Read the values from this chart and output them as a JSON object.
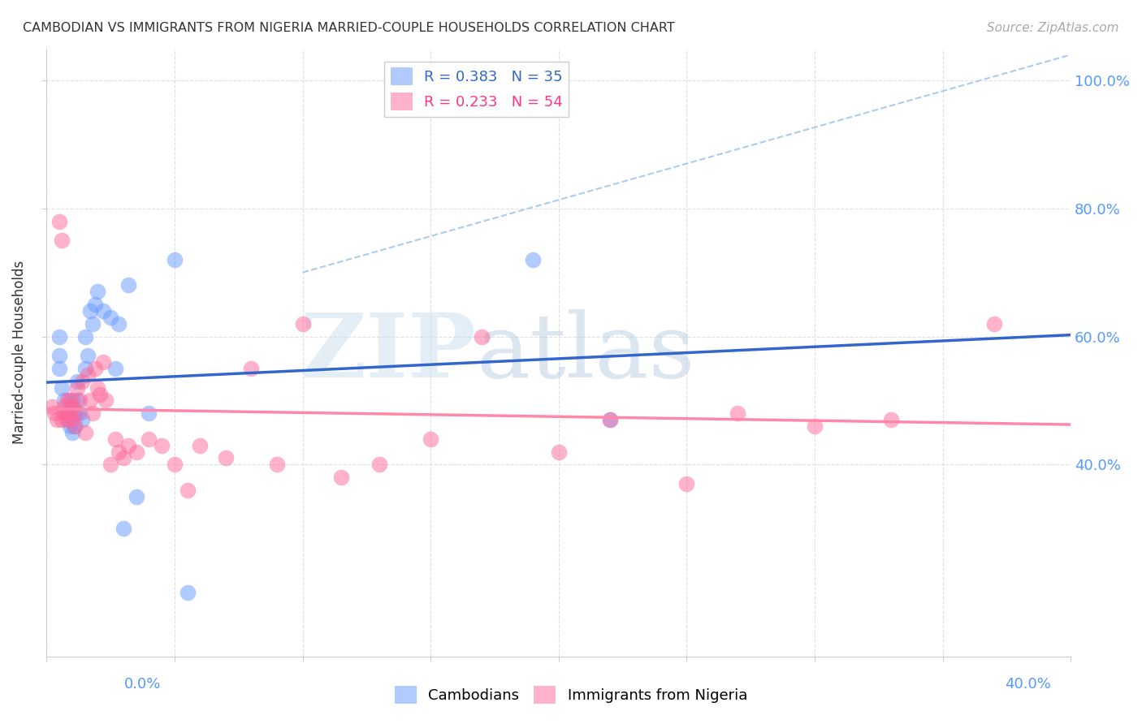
{
  "title": "CAMBODIAN VS IMMIGRANTS FROM NIGERIA MARRIED-COUPLE HOUSEHOLDS CORRELATION CHART",
  "source": "Source: ZipAtlas.com",
  "ylabel": "Married-couple Households",
  "xlim": [
    0.0,
    0.4
  ],
  "ylim": [
    0.1,
    1.05
  ],
  "legend1_label": "R = 0.383   N = 35",
  "legend2_label": "R = 0.233   N = 54",
  "legend1_color": "#6699ff",
  "legend2_color": "#ff6699",
  "watermark_zip": "ZIP",
  "watermark_atlas": "atlas",
  "cambodian_x": [
    0.005,
    0.005,
    0.005,
    0.006,
    0.007,
    0.008,
    0.008,
    0.009,
    0.01,
    0.01,
    0.011,
    0.011,
    0.012,
    0.012,
    0.013,
    0.014,
    0.015,
    0.015,
    0.016,
    0.017,
    0.018,
    0.019,
    0.02,
    0.022,
    0.025,
    0.027,
    0.028,
    0.03,
    0.032,
    0.035,
    0.04,
    0.05,
    0.055,
    0.19,
    0.22
  ],
  "cambodian_y": [
    0.6,
    0.57,
    0.55,
    0.52,
    0.5,
    0.48,
    0.47,
    0.46,
    0.45,
    0.5,
    0.48,
    0.46,
    0.5,
    0.53,
    0.48,
    0.47,
    0.55,
    0.6,
    0.57,
    0.64,
    0.62,
    0.65,
    0.67,
    0.64,
    0.63,
    0.55,
    0.62,
    0.3,
    0.68,
    0.35,
    0.48,
    0.72,
    0.2,
    0.72,
    0.47
  ],
  "nigeria_x": [
    0.002,
    0.003,
    0.004,
    0.005,
    0.006,
    0.006,
    0.007,
    0.007,
    0.008,
    0.008,
    0.009,
    0.009,
    0.01,
    0.01,
    0.011,
    0.012,
    0.012,
    0.013,
    0.014,
    0.015,
    0.016,
    0.017,
    0.018,
    0.019,
    0.02,
    0.021,
    0.022,
    0.023,
    0.025,
    0.027,
    0.028,
    0.03,
    0.032,
    0.035,
    0.04,
    0.045,
    0.05,
    0.055,
    0.06,
    0.07,
    0.08,
    0.09,
    0.1,
    0.115,
    0.13,
    0.15,
    0.17,
    0.2,
    0.22,
    0.25,
    0.27,
    0.3,
    0.33,
    0.37
  ],
  "nigeria_y": [
    0.49,
    0.48,
    0.47,
    0.78,
    0.75,
    0.47,
    0.48,
    0.49,
    0.5,
    0.47,
    0.5,
    0.48,
    0.49,
    0.47,
    0.46,
    0.48,
    0.52,
    0.5,
    0.53,
    0.45,
    0.54,
    0.5,
    0.48,
    0.55,
    0.52,
    0.51,
    0.56,
    0.5,
    0.4,
    0.44,
    0.42,
    0.41,
    0.43,
    0.42,
    0.44,
    0.43,
    0.4,
    0.36,
    0.43,
    0.41,
    0.55,
    0.4,
    0.62,
    0.38,
    0.4,
    0.44,
    0.6,
    0.42,
    0.47,
    0.37,
    0.48,
    0.46,
    0.47,
    0.62
  ],
  "background_color": "#ffffff",
  "grid_color": "#dddddd",
  "title_color": "#333333",
  "axis_label_color": "#333333",
  "ytick_color": "#5599ff",
  "xtick_color": "#5599ff",
  "regression_blue": "#3366cc",
  "regression_pink": "#ff88aa",
  "dash_color": "#aaccee"
}
